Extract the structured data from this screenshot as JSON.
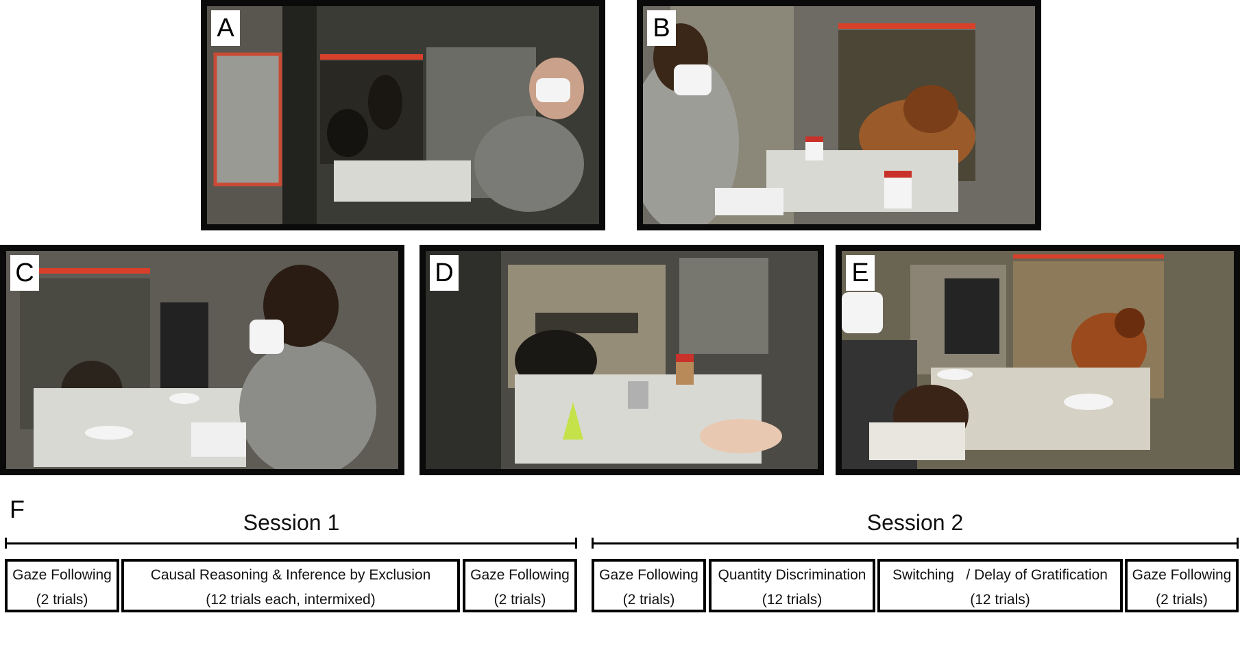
{
  "panels": {
    "a": {
      "label": "A",
      "image": "Experimenter wearing face mask reaching toward chimpanzees behind clear panel"
    },
    "b": {
      "label": "B",
      "image": "Experimenter with clipboard facing orangutan behind panel with two white cups on table"
    },
    "c": {
      "label": "C",
      "image": "Experimenter facing young chimpanzee behind panel with two food plates on table"
    },
    "d": {
      "label": "D",
      "image": "Ape behind panel with cone, metal cup and jar on table"
    },
    "e": {
      "label": "E",
      "image": "Experimenter with clipboard facing orangutan with two food plates on table"
    }
  },
  "figure_f": {
    "label": "F",
    "session1": {
      "title": "Session 1",
      "boxes": [
        {
          "line1": "Gaze Following",
          "line2": "(2 trials)"
        },
        {
          "line1": "Causal Reasoning & Inference by Exclusion",
          "line2": "(12 trials each, intermixed)"
        },
        {
          "line1": "Gaze Following",
          "line2": "(2 trials)"
        }
      ]
    },
    "session2": {
      "title": "Session 2",
      "boxes": [
        {
          "line1": "Gaze Following",
          "line2": "(2 trials)"
        },
        {
          "line1": "Quantity Discrimination",
          "line2": "(12 trials)"
        },
        {
          "line1": "Switching   / Delay of Gratification",
          "line2": "(12 trials)"
        },
        {
          "line1": "Gaze Following",
          "line2": "(2 trials)"
        }
      ]
    }
  },
  "colors": {
    "frame": "#0a0a0a",
    "cage_metal": "#6f6f6a",
    "red_handle": "#d8402a",
    "table": "#d9d9d4"
  }
}
